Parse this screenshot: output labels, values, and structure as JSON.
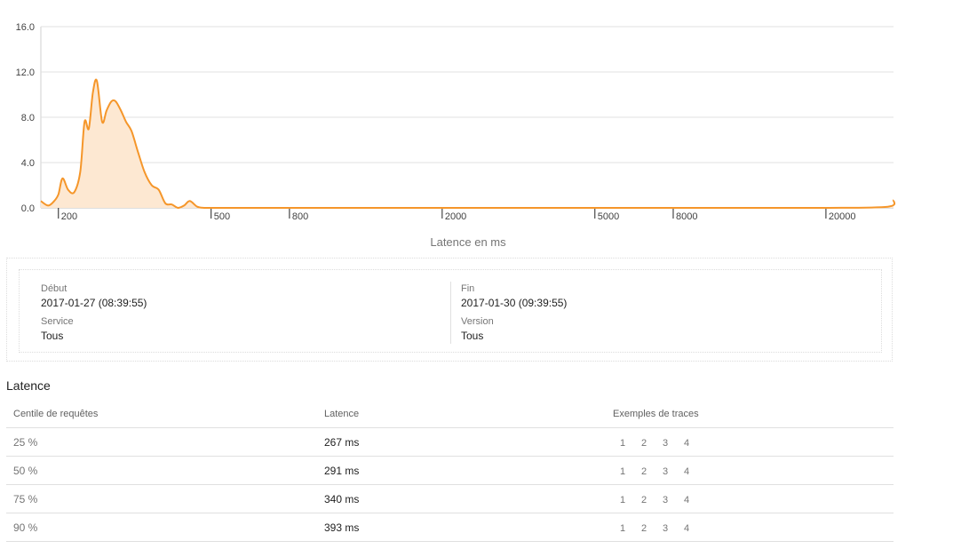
{
  "chart_data": {
    "type": "area",
    "xlabel": "Latence en ms",
    "ylabel": "",
    "y_ticks": [
      "16.0",
      "12.0",
      "8.0",
      "4.0",
      "0.0"
    ],
    "ylim": [
      0,
      16
    ],
    "x_scale": "log",
    "x_ticks": [
      "200",
      "500",
      "800",
      "2000",
      "5000",
      "8000",
      "20000"
    ],
    "xlim": [
      180,
      30000
    ],
    "grid": true,
    "line_color": "#f5962a",
    "fill_color": "#fde8d2",
    "x": [
      180,
      188,
      195,
      200,
      205,
      212,
      220,
      228,
      234,
      240,
      246,
      252,
      260,
      267,
      275,
      282,
      291,
      300,
      310,
      322,
      335,
      350,
      365,
      380,
      395,
      410,
      425,
      440,
      460,
      480,
      500,
      520,
      540,
      560,
      580,
      600,
      620,
      1000,
      2000,
      5000,
      10000,
      20000,
      29000,
      30000
    ],
    "y": [
      0.6,
      0.2,
      0.6,
      1.2,
      2.6,
      1.6,
      1.4,
      3.2,
      7.6,
      7.0,
      10.2,
      11.2,
      7.6,
      8.6,
      9.4,
      9.4,
      8.6,
      7.6,
      6.8,
      5.0,
      3.2,
      2.0,
      1.6,
      0.4,
      0.3,
      0.0,
      0.2,
      0.6,
      0.1,
      0.0,
      0.0,
      0.0,
      0.0,
      0.0,
      0.0,
      0.0,
      0.0,
      0.0,
      0.0,
      0.0,
      0.0,
      0.0,
      0.1,
      0.7
    ]
  },
  "summary": {
    "start_label": "Début",
    "start_value": "2017-01-27 (08:39:55)",
    "end_label": "Fin",
    "end_value": "2017-01-30 (09:39:55)",
    "service_label": "Service",
    "service_value": "Tous",
    "version_label": "Version",
    "version_value": "Tous"
  },
  "latency": {
    "title": "Latence",
    "headers": [
      "Centile de requêtes",
      "Latence",
      "Exemples de traces"
    ],
    "rows": [
      {
        "percentile": "25 %",
        "latency": "267 ms",
        "traces": [
          "1",
          "2",
          "3",
          "4"
        ]
      },
      {
        "percentile": "50 %",
        "latency": "291 ms",
        "traces": [
          "1",
          "2",
          "3",
          "4"
        ]
      },
      {
        "percentile": "75 %",
        "latency": "340 ms",
        "traces": [
          "1",
          "2",
          "3",
          "4"
        ]
      },
      {
        "percentile": "90 %",
        "latency": "393 ms",
        "traces": [
          "1",
          "2",
          "3",
          "4"
        ]
      }
    ]
  }
}
